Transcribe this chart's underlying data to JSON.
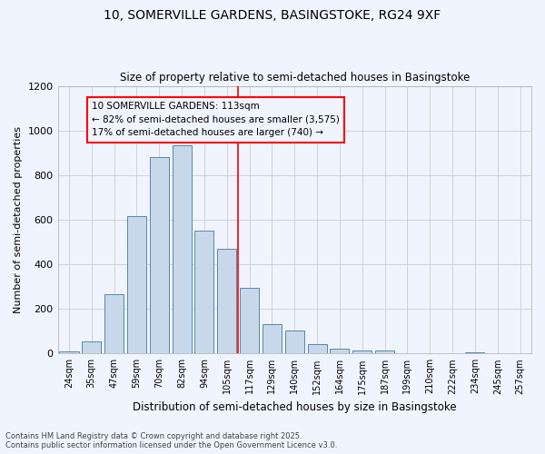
{
  "title_line1": "10, SOMERVILLE GARDENS, BASINGSTOKE, RG24 9XF",
  "title_line2": "Size of property relative to semi-detached houses in Basingstoke",
  "xlabel": "Distribution of semi-detached houses by size in Basingstoke",
  "ylabel": "Number of semi-detached properties",
  "categories": [
    "24sqm",
    "35sqm",
    "47sqm",
    "59sqm",
    "70sqm",
    "82sqm",
    "94sqm",
    "105sqm",
    "117sqm",
    "129sqm",
    "140sqm",
    "152sqm",
    "164sqm",
    "175sqm",
    "187sqm",
    "199sqm",
    "210sqm",
    "222sqm",
    "234sqm",
    "245sqm",
    "257sqm"
  ],
  "values": [
    10,
    55,
    265,
    615,
    880,
    935,
    550,
    470,
    295,
    130,
    105,
    40,
    22,
    12,
    15,
    2,
    0,
    0,
    5,
    0,
    2
  ],
  "bar_color": "#c8d8eb",
  "bar_edge_color": "#5588aa",
  "grid_color": "#cccccc",
  "vline_color": "red",
  "annotation_title": "10 SOMERVILLE GARDENS: 113sqm",
  "annotation_line2": "← 82% of semi-detached houses are smaller (3,575)",
  "annotation_line3": "17% of semi-detached houses are larger (740) →",
  "annotation_box_color": "red",
  "ylim": [
    0,
    1200
  ],
  "footnote_line1": "Contains HM Land Registry data © Crown copyright and database right 2025.",
  "footnote_line2": "Contains public sector information licensed under the Open Government Licence v3.0.",
  "background_color": "#f0f4ff"
}
